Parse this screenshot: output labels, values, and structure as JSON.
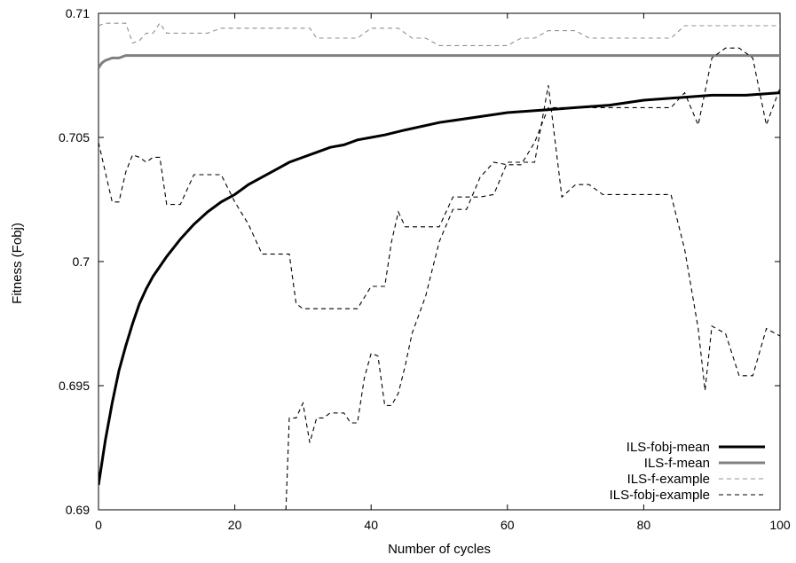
{
  "chart_data": {
    "type": "line",
    "title": "",
    "xlabel": "Number of cycles",
    "ylabel": "Fitness (Fobj)",
    "xlim": [
      0,
      100
    ],
    "ylim": [
      0.69,
      0.71
    ],
    "x_ticks": [
      0,
      20,
      40,
      60,
      80,
      100
    ],
    "x_tick_labels": [
      "0",
      "20",
      "40",
      "60",
      "80",
      "100"
    ],
    "y_ticks": [
      0.69,
      0.695,
      0.7,
      0.705,
      0.71
    ],
    "y_tick_labels": [
      "0.69",
      "0.695",
      "0.7",
      "0.705",
      "0.71"
    ],
    "grid": false,
    "legend_position": "bottom-right",
    "series": [
      {
        "name": "ILS-fobj-mean",
        "color": "#000000",
        "style": "solid-thick",
        "x": [
          0,
          1,
          2,
          3,
          4,
          5,
          6,
          7,
          8,
          9,
          10,
          12,
          14,
          16,
          18,
          20,
          22,
          24,
          26,
          28,
          30,
          32,
          34,
          36,
          38,
          40,
          42,
          45,
          50,
          55,
          60,
          65,
          70,
          75,
          80,
          85,
          90,
          95,
          100
        ],
        "y": [
          0.691,
          0.6928,
          0.6943,
          0.6956,
          0.6966,
          0.6975,
          0.6983,
          0.6989,
          0.6994,
          0.6998,
          0.7002,
          0.7009,
          0.7015,
          0.702,
          0.7024,
          0.7027,
          0.7031,
          0.7034,
          0.7037,
          0.704,
          0.7042,
          0.7044,
          0.7046,
          0.7047,
          0.7049,
          0.705,
          0.7051,
          0.7053,
          0.7056,
          0.7058,
          0.706,
          0.7061,
          0.7062,
          0.7063,
          0.7065,
          0.7066,
          0.7067,
          0.7067,
          0.7068
        ]
      },
      {
        "name": "ILS-f-mean",
        "color": "#808080",
        "style": "solid-thick",
        "x": [
          0,
          0.5,
          1,
          2,
          3,
          4,
          5,
          6,
          8,
          10,
          15,
          20,
          40,
          60,
          80,
          100
        ],
        "y": [
          0.7078,
          0.708,
          0.7081,
          0.7082,
          0.7082,
          0.7083,
          0.7083,
          0.7083,
          0.7083,
          0.7083,
          0.7083,
          0.7083,
          0.7083,
          0.7083,
          0.7083,
          0.7083
        ]
      },
      {
        "name": "ILS-f-example",
        "color": "#909090",
        "style": "dashed",
        "x": [
          0,
          1,
          2,
          3,
          4,
          5,
          6,
          7,
          8,
          9,
          10,
          12,
          14,
          16,
          18,
          20,
          22,
          24,
          26,
          28,
          30,
          31,
          32,
          34,
          36,
          38,
          40,
          42,
          44,
          46,
          48,
          50,
          52,
          54,
          56,
          58,
          60,
          62,
          64,
          66,
          68,
          70,
          72,
          74,
          76,
          78,
          80,
          82,
          84,
          86,
          88,
          90,
          92,
          94,
          96,
          98,
          100
        ],
        "y": [
          0.7095,
          0.7096,
          0.7096,
          0.7096,
          0.7096,
          0.7088,
          0.7089,
          0.7092,
          0.7092,
          0.7096,
          0.7092,
          0.7092,
          0.7092,
          0.7092,
          0.7094,
          0.7094,
          0.7094,
          0.7094,
          0.7094,
          0.7094,
          0.7094,
          0.7094,
          0.709,
          0.709,
          0.709,
          0.709,
          0.7094,
          0.7094,
          0.7094,
          0.709,
          0.709,
          0.7087,
          0.7087,
          0.7087,
          0.7087,
          0.7087,
          0.7087,
          0.709,
          0.709,
          0.7093,
          0.7093,
          0.7093,
          0.709,
          0.709,
          0.709,
          0.709,
          0.709,
          0.709,
          0.709,
          0.7095,
          0.7095,
          0.7095,
          0.7095,
          0.7095,
          0.7095,
          0.7095,
          0.7095
        ]
      },
      {
        "name": "ILS-fobj-example",
        "color": "#000000",
        "style": "dashed",
        "x": [
          0,
          1,
          2,
          3,
          4,
          5,
          6,
          7,
          8,
          9,
          10,
          11,
          12,
          14,
          16,
          18,
          20,
          22,
          24,
          26,
          28,
          29,
          30,
          32,
          34,
          36,
          38,
          40,
          42,
          43,
          44,
          45,
          46,
          48,
          50,
          52,
          54,
          56,
          58,
          60,
          62,
          64,
          66,
          68,
          70,
          72,
          74,
          76,
          78,
          80,
          82,
          84,
          86,
          88,
          89,
          90,
          92,
          94,
          96,
          98,
          100
        ],
        "y": [
          0.7048,
          0.7036,
          0.7024,
          0.7024,
          0.7036,
          0.7043,
          0.7042,
          0.704,
          0.7042,
          0.7042,
          0.7023,
          0.7023,
          0.7023,
          0.7035,
          0.7035,
          0.7035,
          0.7024,
          0.7015,
          0.7003,
          0.7003,
          0.7003,
          0.6983,
          0.6981,
          0.6981,
          0.6981,
          0.6981,
          0.6981,
          0.699,
          0.699,
          0.7008,
          0.702,
          0.7014,
          0.7014,
          0.7014,
          0.7014,
          0.7026,
          0.7026,
          0.7026,
          0.7027,
          0.704,
          0.704,
          0.704,
          0.7071,
          0.7026,
          0.7031,
          0.7031,
          0.7027,
          0.7027,
          0.7027,
          0.7027,
          0.7027,
          0.7027,
          0.7005,
          0.6973,
          0.6948,
          0.6974,
          0.6971,
          0.6954,
          0.6954,
          0.6973,
          0.697
        ]
      }
    ],
    "lower_series_example": {
      "name": "ILS-fobj-example-lower",
      "color": "#000000",
      "style": "dashed",
      "x": [
        27.5,
        28,
        29,
        30,
        31,
        32,
        33,
        34,
        35,
        36,
        37,
        38,
        39,
        40,
        41,
        42,
        43,
        44,
        45,
        46,
        48,
        50,
        52,
        54,
        56,
        58,
        60,
        62,
        64,
        66,
        68,
        70,
        72,
        74,
        76,
        78,
        80,
        82,
        84,
        86,
        88,
        90,
        92,
        94,
        96,
        98,
        100
      ],
      "y": [
        0.69,
        0.6937,
        0.6937,
        0.6943,
        0.6927,
        0.6937,
        0.6937,
        0.6939,
        0.6939,
        0.6939,
        0.6935,
        0.6935,
        0.6953,
        0.6963,
        0.6962,
        0.6942,
        0.6942,
        0.6947,
        0.6958,
        0.6971,
        0.6986,
        0.7008,
        0.7021,
        0.7021,
        0.7034,
        0.704,
        0.7039,
        0.7039,
        0.7048,
        0.7062,
        0.7062,
        0.7062,
        0.7062,
        0.7062,
        0.7062,
        0.7062,
        0.7062,
        0.7062,
        0.7062,
        0.7068,
        0.7055,
        0.7082,
        0.7086,
        0.7086,
        0.7082,
        0.7055,
        0.707
      ]
    }
  },
  "legend": {
    "items": [
      {
        "label": "ILS-fobj-mean",
        "color": "#000000",
        "style": "solid-thick"
      },
      {
        "label": "ILS-f-mean",
        "color": "#808080",
        "style": "solid-thick"
      },
      {
        "label": "ILS-f-example",
        "color": "#909090",
        "style": "dashed"
      },
      {
        "label": "ILS-fobj-example",
        "color": "#000000",
        "style": "dashed"
      }
    ]
  }
}
